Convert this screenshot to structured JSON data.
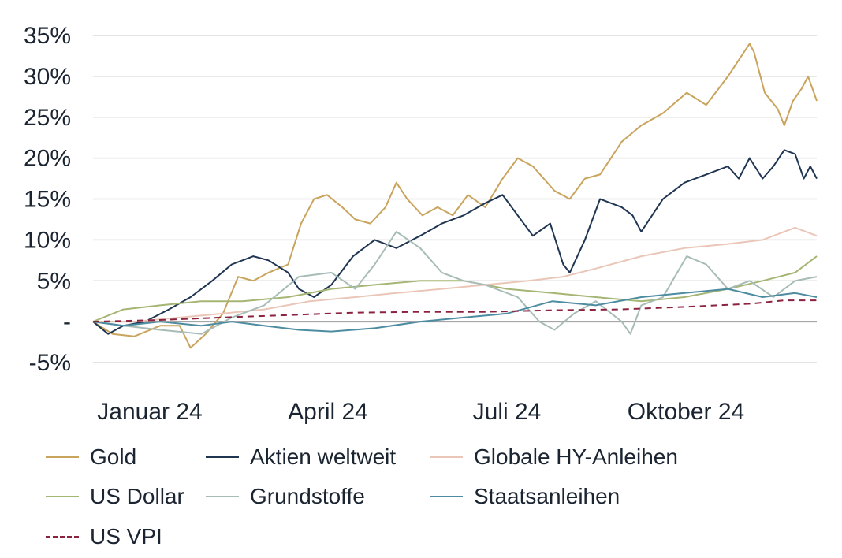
{
  "chart_data": {
    "type": "line",
    "title": "",
    "xlabel": "",
    "ylabel": "",
    "x_tick_labels": [
      "Januar 24",
      "April 24",
      "Juli 24",
      "Oktober 24"
    ],
    "y_tick_labels": [
      "35%",
      "30%",
      "25%",
      "20%",
      "15%",
      "10%",
      "5%",
      "-",
      "-5%"
    ],
    "y_ticks": [
      35,
      30,
      25,
      20,
      15,
      10,
      5,
      0,
      -5
    ],
    "ylim": [
      -5,
      35
    ],
    "x_range": [
      "2024-01-01",
      "2024-11-30"
    ],
    "grid": "horizontal",
    "legend_position": "bottom",
    "series": [
      {
        "name": "Gold",
        "color": "#c9a45c",
        "style": "solid",
        "points": [
          [
            "2024-01-01",
            0
          ],
          [
            "2024-01-10",
            -1.5
          ],
          [
            "2024-01-20",
            -1.8
          ],
          [
            "2024-02-01",
            -0.5
          ],
          [
            "2024-02-10",
            -0.5
          ],
          [
            "2024-02-15",
            -3.2
          ],
          [
            "2024-02-22",
            -1.5
          ],
          [
            "2024-03-01",
            1
          ],
          [
            "2024-03-08",
            5.5
          ],
          [
            "2024-03-15",
            5
          ],
          [
            "2024-03-22",
            6
          ],
          [
            "2024-03-31",
            7
          ],
          [
            "2024-04-06",
            12
          ],
          [
            "2024-04-12",
            15
          ],
          [
            "2024-04-18",
            15.5
          ],
          [
            "2024-04-25",
            14
          ],
          [
            "2024-05-01",
            12.5
          ],
          [
            "2024-05-08",
            12
          ],
          [
            "2024-05-15",
            14
          ],
          [
            "2024-05-20",
            17
          ],
          [
            "2024-05-25",
            15
          ],
          [
            "2024-06-01",
            13
          ],
          [
            "2024-06-08",
            14
          ],
          [
            "2024-06-15",
            13
          ],
          [
            "2024-06-22",
            15.5
          ],
          [
            "2024-06-30",
            14
          ],
          [
            "2024-07-08",
            17.5
          ],
          [
            "2024-07-15",
            20
          ],
          [
            "2024-07-22",
            19
          ],
          [
            "2024-08-01",
            16
          ],
          [
            "2024-08-08",
            15
          ],
          [
            "2024-08-15",
            17.5
          ],
          [
            "2024-08-22",
            18
          ],
          [
            "2024-09-01",
            22
          ],
          [
            "2024-09-10",
            24
          ],
          [
            "2024-09-20",
            25.5
          ],
          [
            "2024-10-01",
            28
          ],
          [
            "2024-10-10",
            26.5
          ],
          [
            "2024-10-20",
            30
          ],
          [
            "2024-10-30",
            34
          ],
          [
            "2024-11-01",
            33
          ],
          [
            "2024-11-06",
            28
          ],
          [
            "2024-11-12",
            26
          ],
          [
            "2024-11-15",
            24
          ],
          [
            "2024-11-19",
            27
          ],
          [
            "2024-11-23",
            28.5
          ],
          [
            "2024-11-26",
            30
          ],
          [
            "2024-11-30",
            27
          ]
        ]
      },
      {
        "name": "Aktien weltweit",
        "color": "#1f3552",
        "style": "solid",
        "points": [
          [
            "2024-01-01",
            0
          ],
          [
            "2024-01-08",
            -1.5
          ],
          [
            "2024-01-15",
            -0.5
          ],
          [
            "2024-01-25",
            0
          ],
          [
            "2024-02-05",
            1.5
          ],
          [
            "2024-02-15",
            3
          ],
          [
            "2024-02-25",
            5
          ],
          [
            "2024-03-05",
            7
          ],
          [
            "2024-03-15",
            8
          ],
          [
            "2024-03-22",
            7.5
          ],
          [
            "2024-03-31",
            6
          ],
          [
            "2024-04-05",
            4
          ],
          [
            "2024-04-12",
            3
          ],
          [
            "2024-04-20",
            4.5
          ],
          [
            "2024-04-30",
            8
          ],
          [
            "2024-05-10",
            10
          ],
          [
            "2024-05-20",
            9
          ],
          [
            "2024-05-31",
            10.5
          ],
          [
            "2024-06-10",
            12
          ],
          [
            "2024-06-20",
            13
          ],
          [
            "2024-06-30",
            14.5
          ],
          [
            "2024-07-08",
            15.5
          ],
          [
            "2024-07-15",
            13
          ],
          [
            "2024-07-22",
            10.5
          ],
          [
            "2024-07-30",
            12
          ],
          [
            "2024-08-05",
            7
          ],
          [
            "2024-08-08",
            6
          ],
          [
            "2024-08-15",
            10
          ],
          [
            "2024-08-22",
            15
          ],
          [
            "2024-09-01",
            14
          ],
          [
            "2024-09-06",
            13
          ],
          [
            "2024-09-10",
            11
          ],
          [
            "2024-09-20",
            15
          ],
          [
            "2024-09-30",
            17
          ],
          [
            "2024-10-10",
            18
          ],
          [
            "2024-10-20",
            19
          ],
          [
            "2024-10-25",
            17.5
          ],
          [
            "2024-10-30",
            20
          ],
          [
            "2024-11-05",
            17.5
          ],
          [
            "2024-11-10",
            19
          ],
          [
            "2024-11-15",
            21
          ],
          [
            "2024-11-20",
            20.5
          ],
          [
            "2024-11-24",
            17.5
          ],
          [
            "2024-11-27",
            19
          ],
          [
            "2024-11-30",
            17.5
          ]
        ]
      },
      {
        "name": "Globale HY-Anleihen",
        "color": "#eac6b8",
        "style": "solid",
        "points": [
          [
            "2024-01-01",
            0
          ],
          [
            "2024-01-20",
            0
          ],
          [
            "2024-02-10",
            0.5
          ],
          [
            "2024-03-01",
            1
          ],
          [
            "2024-03-20",
            1.5
          ],
          [
            "2024-04-10",
            2.5
          ],
          [
            "2024-05-01",
            3
          ],
          [
            "2024-05-20",
            3.5
          ],
          [
            "2024-06-10",
            4
          ],
          [
            "2024-06-30",
            4.5
          ],
          [
            "2024-07-20",
            5
          ],
          [
            "2024-08-05",
            5.5
          ],
          [
            "2024-08-20",
            6.5
          ],
          [
            "2024-09-10",
            8
          ],
          [
            "2024-09-30",
            9
          ],
          [
            "2024-10-20",
            9.5
          ],
          [
            "2024-11-05",
            10
          ],
          [
            "2024-11-20",
            11.5
          ],
          [
            "2024-11-30",
            10.5
          ]
        ]
      },
      {
        "name": "US Dollar",
        "color": "#a5b573",
        "style": "solid",
        "points": [
          [
            "2024-01-01",
            0
          ],
          [
            "2024-01-15",
            1.5
          ],
          [
            "2024-02-01",
            2
          ],
          [
            "2024-02-20",
            2.5
          ],
          [
            "2024-03-10",
            2.5
          ],
          [
            "2024-03-31",
            3
          ],
          [
            "2024-04-20",
            4
          ],
          [
            "2024-05-10",
            4.5
          ],
          [
            "2024-05-31",
            5
          ],
          [
            "2024-06-20",
            5
          ],
          [
            "2024-07-10",
            4
          ],
          [
            "2024-07-31",
            3.5
          ],
          [
            "2024-08-20",
            3
          ],
          [
            "2024-09-10",
            2.5
          ],
          [
            "2024-09-30",
            3
          ],
          [
            "2024-10-20",
            4
          ],
          [
            "2024-11-05",
            5
          ],
          [
            "2024-11-20",
            6
          ],
          [
            "2024-11-30",
            8
          ]
        ]
      },
      {
        "name": "Grundstoffe",
        "color": "#a7bcb7",
        "style": "solid",
        "points": [
          [
            "2024-01-01",
            0
          ],
          [
            "2024-01-15",
            -0.5
          ],
          [
            "2024-02-01",
            -1
          ],
          [
            "2024-02-20",
            -1.5
          ],
          [
            "2024-03-05",
            0.5
          ],
          [
            "2024-03-20",
            2
          ],
          [
            "2024-04-05",
            5.5
          ],
          [
            "2024-04-20",
            6
          ],
          [
            "2024-05-01",
            4
          ],
          [
            "2024-05-10",
            7
          ],
          [
            "2024-05-20",
            11
          ],
          [
            "2024-05-31",
            9
          ],
          [
            "2024-06-10",
            6
          ],
          [
            "2024-06-20",
            5
          ],
          [
            "2024-06-30",
            4.5
          ],
          [
            "2024-07-15",
            3
          ],
          [
            "2024-07-25",
            0
          ],
          [
            "2024-08-01",
            -1
          ],
          [
            "2024-08-10",
            1
          ],
          [
            "2024-08-20",
            2.5
          ],
          [
            "2024-09-01",
            0
          ],
          [
            "2024-09-05",
            -1.5
          ],
          [
            "2024-09-10",
            2
          ],
          [
            "2024-09-20",
            3
          ],
          [
            "2024-10-01",
            8
          ],
          [
            "2024-10-10",
            7
          ],
          [
            "2024-10-20",
            4
          ],
          [
            "2024-10-30",
            5
          ],
          [
            "2024-11-10",
            3
          ],
          [
            "2024-11-20",
            5
          ],
          [
            "2024-11-30",
            5.5
          ]
        ]
      },
      {
        "name": "Staatsanleihen",
        "color": "#4d8ca0",
        "style": "solid",
        "points": [
          [
            "2024-01-01",
            0
          ],
          [
            "2024-01-15",
            -0.5
          ],
          [
            "2024-02-01",
            0
          ],
          [
            "2024-02-20",
            -0.5
          ],
          [
            "2024-03-05",
            0
          ],
          [
            "2024-03-20",
            -0.5
          ],
          [
            "2024-04-05",
            -1
          ],
          [
            "2024-04-20",
            -1.2
          ],
          [
            "2024-05-10",
            -0.8
          ],
          [
            "2024-05-31",
            0
          ],
          [
            "2024-06-20",
            0.5
          ],
          [
            "2024-07-10",
            1
          ],
          [
            "2024-07-31",
            2.5
          ],
          [
            "2024-08-20",
            2
          ],
          [
            "2024-09-10",
            3
          ],
          [
            "2024-09-30",
            3.5
          ],
          [
            "2024-10-20",
            4
          ],
          [
            "2024-11-05",
            3
          ],
          [
            "2024-11-20",
            3.5
          ],
          [
            "2024-11-30",
            3
          ]
        ]
      },
      {
        "name": "US VPI",
        "color": "#8b2340",
        "style": "dashed",
        "points": [
          [
            "2024-01-01",
            0
          ],
          [
            "2024-01-31",
            0.2
          ],
          [
            "2024-02-29",
            0.5
          ],
          [
            "2024-03-31",
            0.8
          ],
          [
            "2024-04-30",
            1.1
          ],
          [
            "2024-05-31",
            1.2
          ],
          [
            "2024-06-30",
            1.2
          ],
          [
            "2024-07-31",
            1.4
          ],
          [
            "2024-08-31",
            1.5
          ],
          [
            "2024-09-30",
            1.8
          ],
          [
            "2024-10-31",
            2.2
          ],
          [
            "2024-11-15",
            2.6
          ],
          [
            "2024-11-30",
            2.6
          ]
        ]
      }
    ]
  }
}
